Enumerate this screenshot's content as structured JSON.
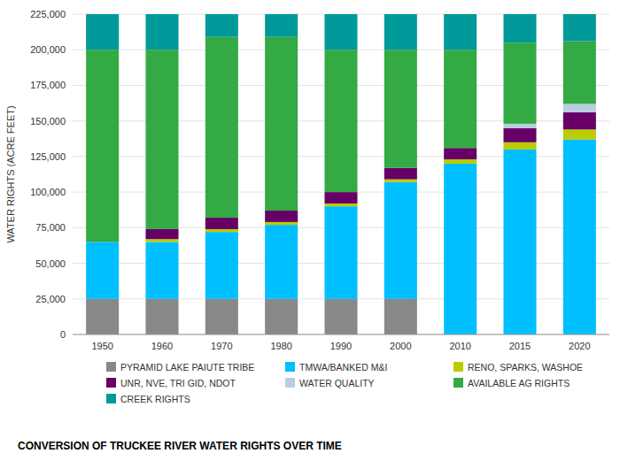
{
  "chart_data": {
    "type": "bar",
    "title": "CONVERSION OF TRUCKEE RIVER WATER RIGHTS OVER TIME",
    "ylabel": "WATER RIGHTS (ACRE FEET)",
    "categories": [
      "1950",
      "1960",
      "1970",
      "1980",
      "1990",
      "2000",
      "2010",
      "2015",
      "2020"
    ],
    "series": [
      {
        "name": "PYRAMID LAKE PAIUTE TRIBE",
        "color": "#888888",
        "values": [
          25000,
          25000,
          25000,
          25000,
          25000,
          25000,
          0,
          0,
          0
        ]
      },
      {
        "name": "TMWA/BANKED M&I",
        "color": "#00BFFF",
        "values": [
          40000,
          40000,
          47000,
          52000,
          65000,
          82000,
          120000,
          130000,
          137000
        ]
      },
      {
        "name": "RENO, SPARKS, WASHOE",
        "color": "#BBCC00",
        "values": [
          0,
          2000,
          2000,
          2000,
          2000,
          2000,
          3000,
          5000,
          7000
        ]
      },
      {
        "name": "UNR, NVE, TRI GID, NDOT",
        "color": "#660066",
        "values": [
          0,
          7000,
          8000,
          8000,
          8000,
          8000,
          8000,
          10000,
          12000
        ]
      },
      {
        "name": "WATER QUALITY",
        "color": "#B8CEE0",
        "values": [
          0,
          0,
          0,
          0,
          0,
          0,
          0,
          3000,
          6000
        ]
      },
      {
        "name": "AVAILABLE AG RIGHTS",
        "color": "#33AA44",
        "values": [
          135000,
          126000,
          127000,
          122000,
          100000,
          83000,
          69000,
          57000,
          44000
        ]
      },
      {
        "name": "CREEK RIGHTS",
        "color": "#009999",
        "values": [
          25000,
          25000,
          16000,
          16000,
          25000,
          25000,
          25000,
          20000,
          19000
        ]
      }
    ],
    "ylim": [
      0,
      225000
    ],
    "yticks": [
      0,
      {
        "value": 25000,
        "label": "25,000"
      },
      {
        "value": 50000,
        "label": "50,000"
      },
      {
        "value": 75000,
        "label": "75,000"
      },
      {
        "value": 100000,
        "label": "100,000"
      },
      {
        "value": 125000,
        "label": "125,000"
      },
      {
        "value": 150000,
        "label": "150,000"
      },
      {
        "value": 175000,
        "label": "175,000"
      },
      {
        "value": 200000,
        "label": "200,000"
      },
      {
        "value": 225000,
        "label": "225,000"
      }
    ],
    "stacked": true,
    "grid": true,
    "legend": "bottom"
  }
}
